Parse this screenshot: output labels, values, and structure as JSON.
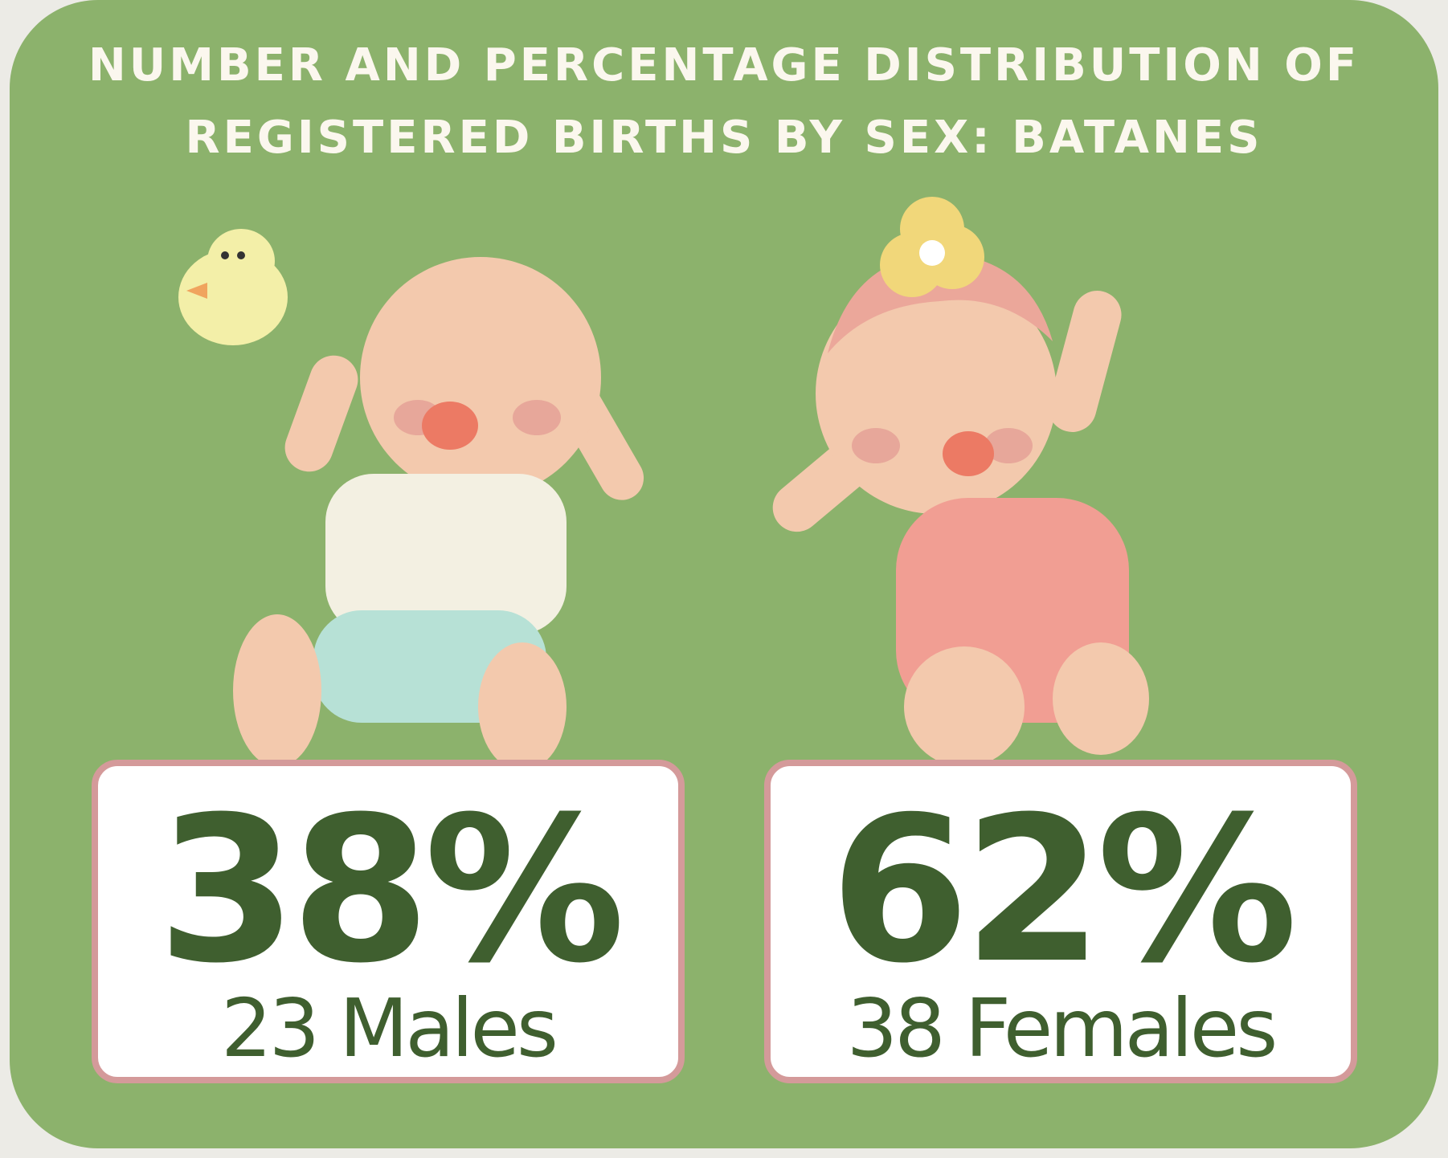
{
  "header": {
    "title_lines": [
      "NUMBER AND PERCENTAGE DISTRIBUTION OF",
      "REGISTERED BIRTHS BY SEX: BATANES"
    ]
  },
  "cards": [
    {
      "percent": "38%",
      "count": "23 Males"
    },
    {
      "percent": "62%",
      "count": "38 Females"
    }
  ]
}
